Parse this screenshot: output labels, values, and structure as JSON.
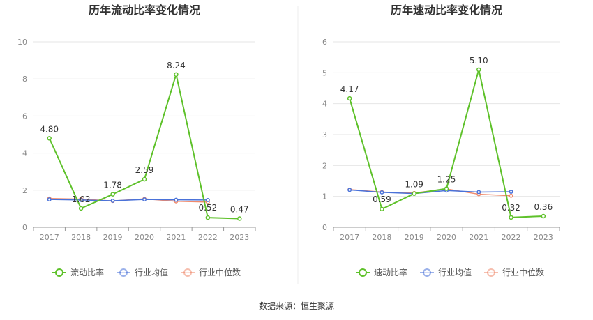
{
  "chart_data": [
    {
      "type": "line",
      "title": "历年流动比率变化情况",
      "categories": [
        "2017",
        "2018",
        "2019",
        "2020",
        "2021",
        "2022",
        "2023"
      ],
      "yticks": [
        0,
        2,
        4,
        6,
        8,
        10
      ],
      "ylim": [
        0,
        10
      ],
      "series": [
        {
          "name": "流动比率",
          "color": "#5ec12a",
          "values": [
            4.8,
            1.02,
            1.78,
            2.59,
            8.24,
            0.52,
            0.47
          ],
          "labels": [
            "4.80",
            "1.02",
            "1.78",
            "2.59",
            "8.24",
            "0.52",
            "0.47"
          ]
        },
        {
          "name": "行业均值",
          "color": "#4a72d9",
          "values": [
            1.5,
            1.47,
            1.43,
            1.5,
            1.48,
            1.47,
            null
          ]
        },
        {
          "name": "行业中位数",
          "color": "#f08a6c",
          "values": [
            1.55,
            1.52,
            1.42,
            1.53,
            1.4,
            1.36,
            null
          ]
        }
      ],
      "legend_position": "bottom"
    },
    {
      "type": "line",
      "title": "历年速动比率变化情况",
      "categories": [
        "2017",
        "2018",
        "2019",
        "2020",
        "2021",
        "2022",
        "2023"
      ],
      "yticks": [
        0,
        1,
        2,
        3,
        4,
        5,
        6
      ],
      "ylim": [
        0,
        6
      ],
      "series": [
        {
          "name": "速动比率",
          "color": "#5ec12a",
          "values": [
            4.17,
            0.59,
            1.09,
            1.25,
            5.1,
            0.32,
            0.36
          ],
          "labels": [
            "4.17",
            "0.59",
            "1.09",
            "1.25",
            "5.10",
            "0.32",
            "0.36"
          ]
        },
        {
          "name": "行业均值",
          "color": "#4a72d9",
          "values": [
            1.21,
            1.13,
            1.09,
            1.19,
            1.14,
            1.15,
            null
          ]
        },
        {
          "name": "行业中位数",
          "color": "#f08a6c",
          "values": [
            1.22,
            1.14,
            1.11,
            1.24,
            1.07,
            1.02,
            null
          ]
        }
      ],
      "legend_position": "bottom"
    }
  ],
  "footer": "数据来源：恒生聚源"
}
